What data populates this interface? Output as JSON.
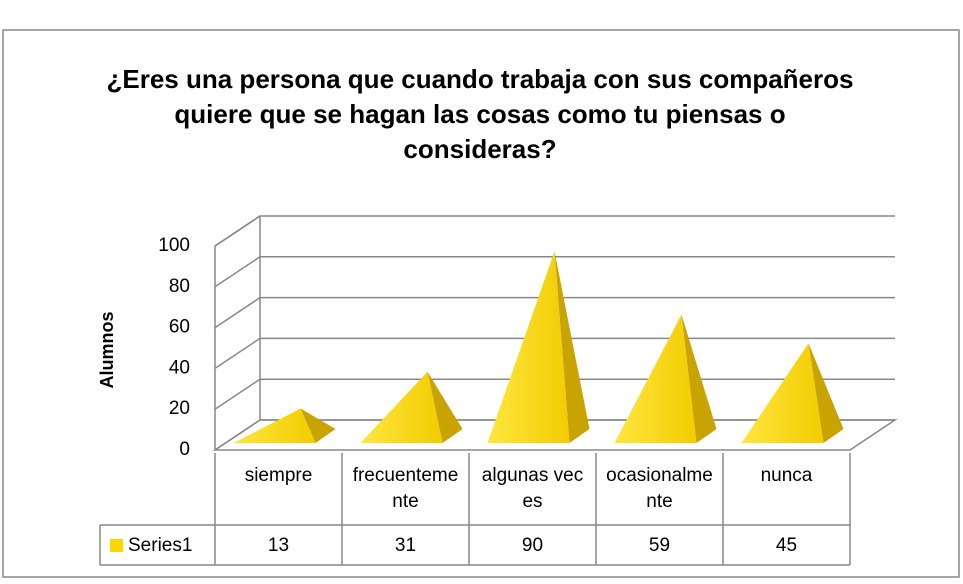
{
  "chart_data": {
    "type": "pyramid3d",
    "title": "¿Eres una persona que cuando trabaja con sus compañeros quiere que se hagan las cosas como tu piensas o consideras?",
    "y_label": "Alumnos",
    "categories": [
      "siempre",
      "frecuentemente",
      "algunas veces",
      "ocasionalmente",
      "nunca"
    ],
    "series": [
      {
        "name": "Series1",
        "color": "#ffd700",
        "values": [
          13,
          31,
          90,
          59,
          45
        ]
      }
    ],
    "ylim": [
      0,
      100
    ],
    "yticks": [
      0,
      20,
      40,
      60,
      80,
      100
    ],
    "grid": true,
    "data_table": true
  }
}
